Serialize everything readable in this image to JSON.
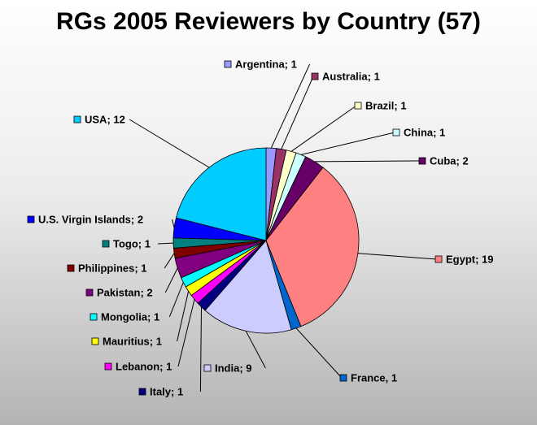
{
  "chart_data": {
    "type": "pie",
    "title": "RGs 2005 Reviewers by Country (57)",
    "start": "12 o'clock, clockwise",
    "slices": [
      {
        "label": "Argentina; 1",
        "value": 1,
        "color": "#9999ff"
      },
      {
        "label": "Australia; 1",
        "value": 1,
        "color": "#993366"
      },
      {
        "label": "Brazil; 1",
        "value": 1,
        "color": "#ffffcc"
      },
      {
        "label": "China; 1",
        "value": 1,
        "color": "#ccffff"
      },
      {
        "label": "Cuba; 2",
        "value": 2,
        "color": "#660066"
      },
      {
        "label": "Egypt; 19",
        "value": 19,
        "color": "#ff8080"
      },
      {
        "label": "France, 1",
        "value": 1,
        "color": "#0066cc"
      },
      {
        "label": "India; 9",
        "value": 9,
        "color": "#ccccff"
      },
      {
        "label": "Italy; 1",
        "value": 1,
        "color": "#000080"
      },
      {
        "label": "Lebanon; 1",
        "value": 1,
        "color": "#ff00ff"
      },
      {
        "label": "Mauritius; 1",
        "value": 1,
        "color": "#ffff00"
      },
      {
        "label": "Mongolia; 1",
        "value": 1,
        "color": "#00ffff"
      },
      {
        "label": "Pakistan; 2",
        "value": 2,
        "color": "#800080"
      },
      {
        "label": "Philippines; 1",
        "value": 1,
        "color": "#800000"
      },
      {
        "label": "Togo; 1",
        "value": 1,
        "color": "#008080"
      },
      {
        "label": "U.S. Virgin Islands; 2",
        "value": 2,
        "color": "#0000ff"
      },
      {
        "label": "USA; 12",
        "value": 12,
        "color": "#00ccff"
      }
    ]
  }
}
